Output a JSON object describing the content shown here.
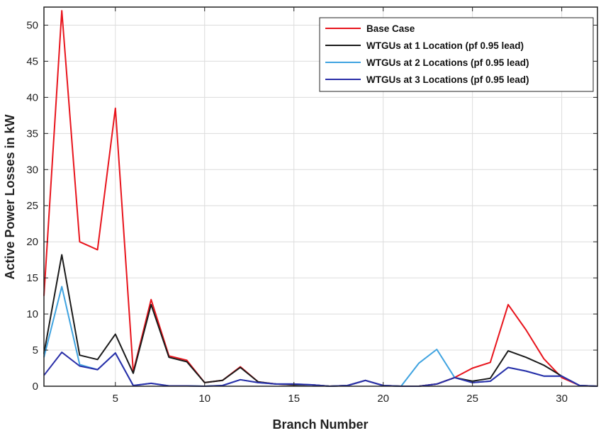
{
  "chart_data": {
    "type": "line",
    "title": "",
    "xlabel": "Branch Number",
    "ylabel": "Active Power Losses in kW",
    "xlim": [
      1,
      32
    ],
    "ylim": [
      0,
      52.5
    ],
    "xticks": [
      5,
      10,
      15,
      20,
      25,
      30
    ],
    "yticks": [
      0,
      5,
      10,
      15,
      20,
      25,
      30,
      35,
      40,
      45,
      50
    ],
    "grid": true,
    "legend_position": "top-right",
    "x": [
      1,
      2,
      3,
      4,
      5,
      6,
      7,
      8,
      9,
      10,
      11,
      12,
      13,
      14,
      15,
      16,
      17,
      18,
      19,
      20,
      21,
      22,
      23,
      24,
      25,
      26,
      27,
      28,
      29,
      30,
      31,
      32
    ],
    "series": [
      {
        "name": "Base Case",
        "color": "#e8141c",
        "values": [
          12.5,
          52,
          20,
          18.9,
          38.5,
          2,
          12,
          4.2,
          3.6,
          0.5,
          0.8,
          2.7,
          0.6,
          0.3,
          0.2,
          0.2,
          0,
          0.1,
          0.8,
          0.1,
          0,
          0,
          0.3,
          1.2,
          2.5,
          3.3,
          11.3,
          7.8,
          3.8,
          1.2,
          0.1,
          0
        ]
      },
      {
        "name": "WTGUs at 1 Location (pf 0.95 lead)",
        "color": "#1a1a1a",
        "values": [
          4.5,
          18.2,
          4.3,
          3.7,
          7.2,
          1.8,
          11.3,
          4,
          3.4,
          0.5,
          0.8,
          2.6,
          0.6,
          0.3,
          0.2,
          0.2,
          0,
          0.1,
          0.8,
          0.1,
          0,
          0,
          0.3,
          1.2,
          0.7,
          1.1,
          4.9,
          4,
          2.9,
          1.4,
          0.1,
          0
        ]
      },
      {
        "name": "WTGUs at 2 Locations (pf 0.95 lead)",
        "color": "#3fa3e0",
        "values": [
          4,
          13.8,
          3,
          2.3,
          4.6,
          0.1,
          0.4,
          0.05,
          0.05,
          0,
          0.1,
          0.9,
          0.5,
          0.3,
          0.3,
          0.2,
          0,
          0.1,
          0.8,
          0.1,
          0,
          3.2,
          5.1,
          1.2,
          0.5,
          0.7,
          2.6,
          2.1,
          1.4,
          1.4,
          0.1,
          0
        ]
      },
      {
        "name": "WTGUs at 3 Locations (pf 0.95 lead)",
        "color": "#2a2ea8",
        "values": [
          1.5,
          4.7,
          2.8,
          2.3,
          4.6,
          0.1,
          0.4,
          0.05,
          0.05,
          0,
          0.1,
          0.9,
          0.5,
          0.3,
          0.3,
          0.2,
          0,
          0.1,
          0.8,
          0.1,
          0,
          0,
          0.3,
          1.2,
          0.5,
          0.7,
          2.6,
          2.1,
          1.4,
          1.4,
          0.1,
          0
        ]
      }
    ]
  }
}
